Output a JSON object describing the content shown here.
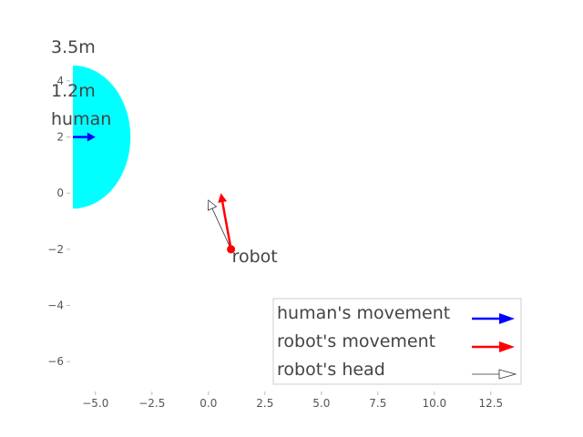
{
  "chart_data": {
    "type": "scatter",
    "title": "",
    "xlabel": "",
    "ylabel": "",
    "xlim": [
      -6,
      14
    ],
    "ylim": [
      -7,
      5
    ],
    "x_ticks": [
      -5.0,
      -2.5,
      0.0,
      2.5,
      5.0,
      7.5,
      10.0,
      12.5
    ],
    "x_tick_labels": [
      "−5.0",
      "−2.5",
      "0.0",
      "2.5",
      "5.0",
      "7.5",
      "10.0",
      "12.5"
    ],
    "y_ticks": [
      -6,
      -4,
      -2,
      0,
      2,
      4
    ],
    "y_tick_labels": [
      "−6",
      "−4",
      "−2",
      "0",
      "2",
      "4"
    ],
    "grid": false,
    "colors": {
      "zone": "#00ffff",
      "human_arrow": "#0000ff",
      "robot_arrow": "#ff0000",
      "robot_point": "#ff0000",
      "head_arrow": "#ffffff"
    },
    "annotations": {
      "radius_outer": "3.5m",
      "radius_inner": "1.2m",
      "human_label": "human",
      "robot_label": "robot"
    },
    "human": {
      "x": -6,
      "y": 2,
      "zone_center": [
        -6,
        2
      ],
      "zone_radius": 2.55,
      "movement": [
        1,
        0
      ]
    },
    "robot": {
      "x": 1,
      "y": -2,
      "movement": [
        -0.45,
        2.0
      ],
      "head": [
        -1.0,
        1.75
      ]
    },
    "legend": {
      "position": "lower-right",
      "entries": [
        {
          "label": "human's movement",
          "color": "#0000ff"
        },
        {
          "label": "robot's movement",
          "color": "#ff0000"
        },
        {
          "label": "robot's head",
          "color": "#ffffff"
        }
      ]
    }
  }
}
